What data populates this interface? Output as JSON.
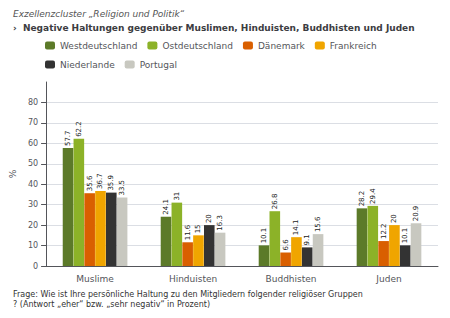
{
  "chart_data": {
    "type": "bar",
    "title": "›  Negative Haltungen gegenüber Muslimen, Hinduisten, Buddhisten und Juden",
    "subtitle": "Exzellenzcluster „Religion und Politik“",
    "footnote": "Frage: Wie ist Ihre persönliche Haltung zu den Mitgliedern folgender religiöser Gruppen? (Antwort „eher“ bzw. „sehr negativ“ in Prozent)",
    "categories": [
      "Muslime",
      "Hinduisten",
      "Buddhisten",
      "Juden"
    ],
    "series": [
      {
        "name": "Westdeutschland",
        "color": "#5c7a29",
        "values": [
          57.7,
          24.1,
          10.1,
          28.2
        ]
      },
      {
        "name": "Ostdeutschland",
        "color": "#8cb228",
        "values": [
          62.2,
          31.0,
          26.8,
          29.4
        ]
      },
      {
        "name": "Dänemark",
        "color": "#d95f00",
        "values": [
          35.6,
          11.6,
          6.6,
          12.2
        ]
      },
      {
        "name": "Frankreich",
        "color": "#f0a500",
        "values": [
          36.7,
          15.0,
          14.1,
          20.0
        ]
      },
      {
        "name": "Niederlande",
        "color": "#333333",
        "values": [
          35.9,
          20.0,
          9.1,
          10.1
        ]
      },
      {
        "name": "Portugal",
        "color": "#c8c8c0",
        "values": [
          33.5,
          16.3,
          15.6,
          20.9
        ]
      }
    ],
    "ylim": [
      0,
      90
    ],
    "yticks": [
      0,
      10,
      20,
      30,
      40,
      50,
      60,
      70,
      80
    ],
    "ylabel": "%",
    "grid": true,
    "legend": "top",
    "data_labels": true
  }
}
